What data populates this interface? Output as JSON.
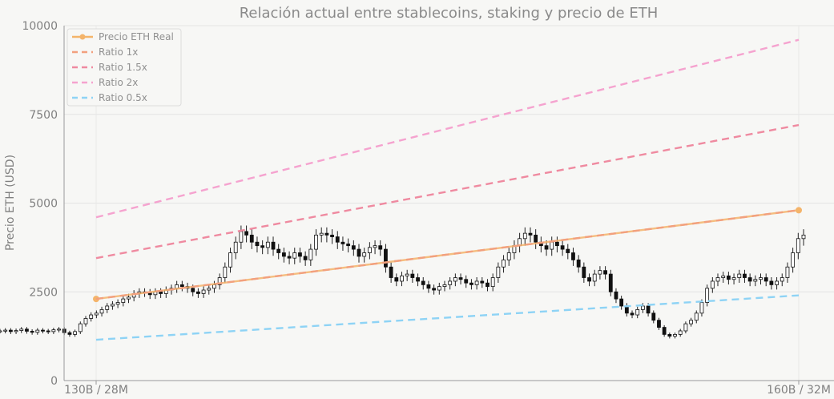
{
  "chart_data": {
    "type": "line",
    "title": "Relación actual entre stablecoins, staking y precio de ETH",
    "ylabel": "Precio ETH (USD)",
    "xlabel": "",
    "x_ticks": [
      "130B / 28M",
      "160B / 32M"
    ],
    "x": [
      "130B / 28M",
      "160B / 32M"
    ],
    "ylim": [
      0,
      10000
    ],
    "y_ticks": [
      0,
      2500,
      5000,
      7500,
      10000
    ],
    "grid": true,
    "legend_position": "top-left",
    "series": [
      {
        "name": "Precio ETH Real",
        "style": "solid-markers",
        "color": "#f4b46a",
        "values": [
          2300,
          4800
        ]
      },
      {
        "name": "Ratio 1x",
        "style": "dashed",
        "color": "#f2a07e",
        "values": [
          2300,
          4800
        ]
      },
      {
        "name": "Ratio 1.5x",
        "style": "dashed",
        "color": "#ef8aa0",
        "values": [
          3450,
          7200
        ]
      },
      {
        "name": "Ratio 2x",
        "style": "dashed",
        "color": "#f5a3cf",
        "values": [
          4600,
          9600
        ]
      },
      {
        "name": "Ratio 0.5x",
        "style": "dashed",
        "color": "#8ed3f5",
        "values": [
          1150,
          2400
        ]
      }
    ],
    "candlestick_overlay": {
      "description_values": "Background ETH price candles (approximate closes, chronological)",
      "closes": [
        1400,
        1420,
        1380,
        1410,
        1450,
        1390,
        1360,
        1420,
        1400,
        1380,
        1430,
        1450,
        1350,
        1300,
        1380,
        1600,
        1750,
        1850,
        1900,
        2000,
        2100,
        2150,
        2200,
        2300,
        2350,
        2450,
        2500,
        2480,
        2420,
        2500,
        2450,
        2550,
        2600,
        2700,
        2650,
        2600,
        2500,
        2450,
        2550,
        2600,
        2700,
        2900,
        3200,
        3600,
        3900,
        4200,
        4100,
        3900,
        3800,
        3750,
        3900,
        3700,
        3600,
        3500,
        3450,
        3600,
        3500,
        3400,
        3700,
        4100,
        4150,
        4100,
        4050,
        3900,
        3850,
        3800,
        3700,
        3500,
        3600,
        3750,
        3800,
        3700,
        3200,
        2900,
        2800,
        2950,
        3000,
        2900,
        2800,
        2700,
        2600,
        2550,
        2650,
        2700,
        2800,
        2900,
        2850,
        2750,
        2700,
        2800,
        2750,
        2650,
        2900,
        3200,
        3400,
        3600,
        3800,
        4000,
        4150,
        4100,
        3900,
        3800,
        3700,
        3900,
        3800,
        3700,
        3600,
        3400,
        3200,
        2900,
        2800,
        3000,
        3100,
        3000,
        2500,
        2300,
        2100,
        1900,
        1850,
        2000,
        2100,
        1900,
        1700,
        1500,
        1300,
        1250,
        1300,
        1400,
        1600,
        1700,
        1900,
        2200,
        2600,
        2800,
        2900,
        2950,
        2850,
        2900,
        3000,
        2900,
        2800,
        2850,
        2900,
        2800,
        2700,
        2800,
        2900,
        3200,
        3600,
        4000,
        4100
      ]
    },
    "legend": [
      "Precio ETH Real",
      "Ratio 1x",
      "Ratio 1.5x",
      "Ratio 2x",
      "Ratio 0.5x"
    ]
  }
}
